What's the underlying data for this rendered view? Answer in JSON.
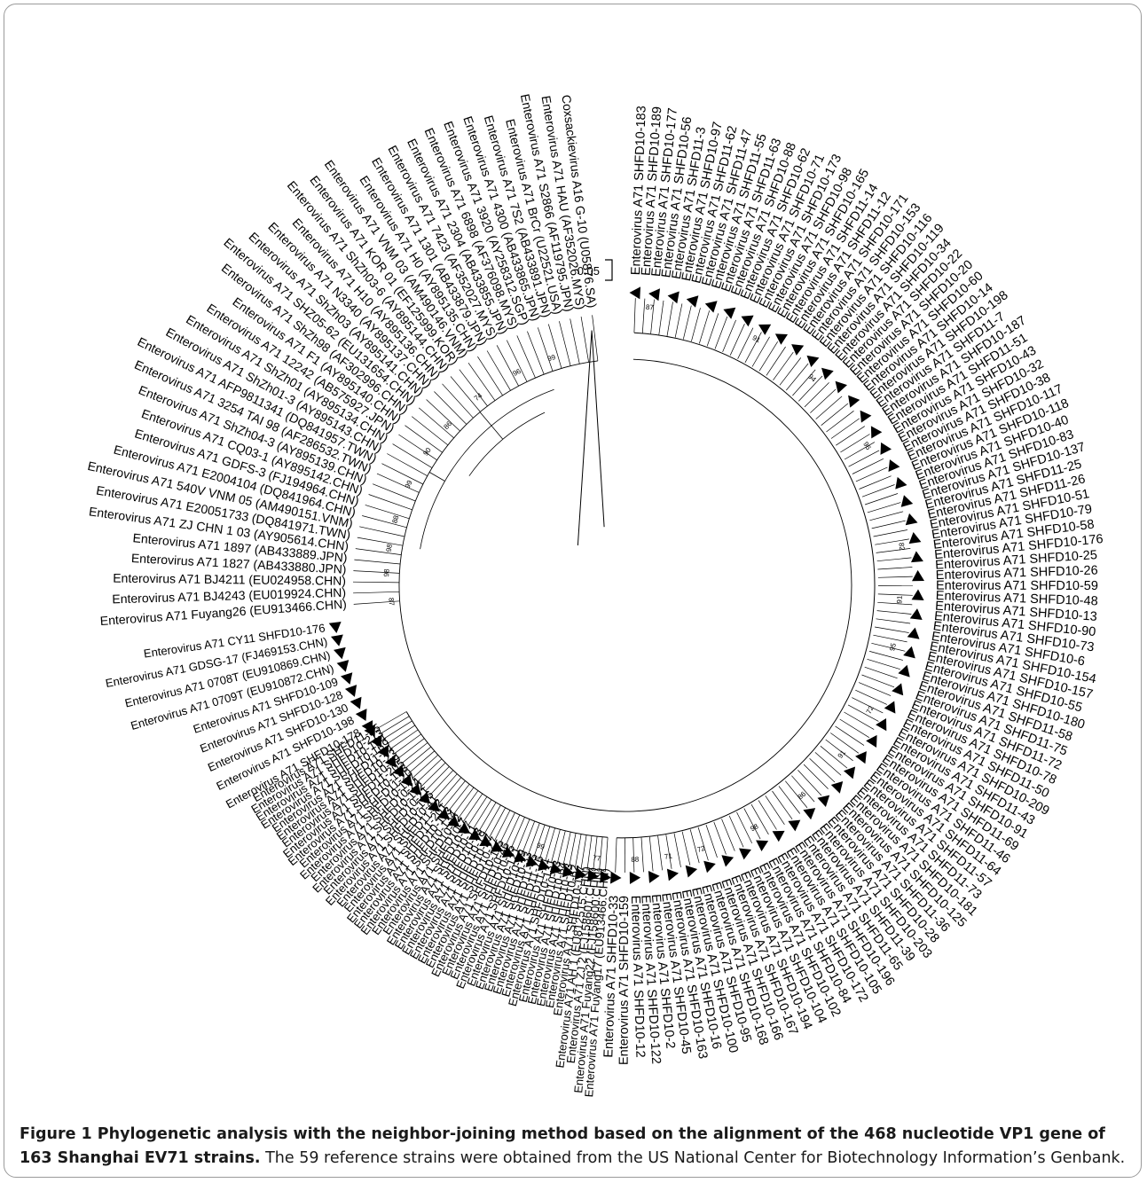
{
  "figure": {
    "caption_title": "Figure 1 Phylogenetic analysis with the neighbor-joining method based on the alignment of the 468 nucleotide VP1 gene of 163 Shanghai EV71 strains.",
    "caption_body": "The 59 reference strains were obtained from the US National Center for Biotechnology Information’s Genbank.",
    "scale_bar_label": "0.05"
  },
  "tree": {
    "left_labels": [
      "Enterovirus A71 Fuyang26 (EU913466.CHN)",
      "Enterovirus A71 BJ4243 (EU019924.CHN)",
      "Enterovirus A71 BJ4211 (EU024958.CHN)",
      "Enterovirus A71 1827 (AB433880.JPN)",
      "Enterovirus A71 1897 (AB433889.JPN)",
      "Enterovirus A71 ZJ CHN 1 03 (AY905614.CHN)",
      "Enterovirus A71 E20051733 (DQ841971.TWN)",
      "Enterovirus A71 540V VNM 05 (AM490151.VNM)",
      "Enterovirus A71 E2004104 (DQ841964.CHN)",
      "Enterovirus A71 GDFS-3 (FJ194964.CHN)",
      "Enterovirus A71 CQ03-1 (AY895142.CHN)",
      "Enterovirus A71 ShZh04-3 (AY895139.CHN)",
      "Enterovirus A71 3254 TAI 98 (AF286532.TWN)",
      "Enterovirus A71 AFP9811341 (DQ841957.TWN)",
      "Enterovirus A71 ShZh01-3 (AY895143.CHN)",
      "Enterovirus A71 ShZh01 (AY895134.CHN)",
      "Enterovirus A71 12242 (AB575927.JPN)",
      "Enterovirus A71 F1 (AY895140.CHN)",
      "Enterovirus A71 ShZh98 (AF302996.CHN)",
      "Enterovirus A71 SHZ05-62 (EU131654.CHN)",
      "Enterovirus A71 ShZh03 (AY895141.CHN)",
      "Enterovirus A71 N3340 (AY895137.CHN)",
      "Enterovirus A71 H10 (AY895136.CHN)",
      "Enterovirus A71 ShZh03-6 (AY895144.CHN)",
      "Enterovirus A71 KOR 01 (EF125999.KOR)",
      "Enterovirus A71 VNM 03 (AM490146.VNM)",
      "Enterovirus A71 H0 (AY895135.CHN)",
      "Enterovirus A71 1301 (AB433879.JPN)",
      "Enterovirus A71 7423 (AF352027.MYS)",
      "Enterovirus A71 2304 (AB433855.JPN)",
      "Enterovirus A71 6898 (AF376098.MYS)",
      "Enterovirus A71 3920 (AY258312.SGP)",
      "Enterovirus A71 4300 (AB433865.JPN)",
      "Enterovirus A71 7S2 (AB433891.JPN)",
      "Enterovirus A71 BrCr (U22521.USA)",
      "Enterovirus A71 S2866 (AF119795.JPN)",
      "Enterovirus A71 HAU (AF352026.MYS)",
      "Coxsackievirus A16 G-10 (U05876.SA)"
    ],
    "right_labels": [
      "Enterovirus A71 SHFD10-183",
      "Enterovirus A71 SHFD10-189",
      "Enterovirus A71 SHFD10-177",
      "Enterovirus A71 SHFD10-56",
      "Enterovirus A71 SHFD11-3",
      "Enterovirus A71 SHFD10-97",
      "Enterovirus A71 SHFD11-62",
      "Enterovirus A71 SHFD11-47",
      "Enterovirus A71 SHFD11-55",
      "Enterovirus A71 SHFD11-63",
      "Enterovirus A71 SHFD10-88",
      "Enterovirus A71 SHFD10-62",
      "Enterovirus A71 SHFD10-71",
      "Enterovirus A71 SHFD10-173",
      "Enterovirus A71 SHFD10-98",
      "Enterovirus A71 SHFD10-165",
      "Enterovirus A71 SHFD11-14",
      "Enterovirus A71 SHFD11-12",
      "Enterovirus A71 SHFD10-171",
      "Enterovirus A71 SHFD10-153",
      "Enterovirus A71 SHFD10-116",
      "Enterovirus A71 SHFD10-119",
      "Enterovirus A71 SHFD10-34",
      "Enterovirus A71 SHFD10-22",
      "Enterovirus A71 SHFD10-20",
      "Enterovirus A71 SHFD10-60",
      "Enterovirus A71 SHFD10-14",
      "Enterovirus A71 SHFD10-198",
      "Enterovirus A71 SHFD11-7",
      "Enterovirus A71 SHFD10-187",
      "Enterovirus A71 SHFD11-51",
      "Enterovirus A71 SHFD10-43",
      "Enterovirus A71 SHFD10-32",
      "Enterovirus A71 SHFD10-38",
      "Enterovirus A71 SHFD10-117",
      "Enterovirus A71 SHFD10-118",
      "Enterovirus A71 SHFD10-40",
      "Enterovirus A71 SHFD10-83",
      "Enterovirus A71 SHFD10-137",
      "Enterovirus A71 SHFD11-25",
      "Enterovirus A71 SHFD11-26",
      "Enterovirus A71 SHFD10-51",
      "Enterovirus A71 SHFD10-79",
      "Enterovirus A71 SHFD10-58",
      "Enterovirus A71 SHFD10-176",
      "Enterovirus A71 SHFD10-25",
      "Enterovirus A71 SHFD10-26",
      "Enterovirus A71 SHFD10-59",
      "Enterovirus A71 SHFD10-48",
      "Enterovirus A71 SHFD10-13",
      "Enterovirus A71 SHFD10-90",
      "Enterovirus A71 SHFD10-73",
      "Enterovirus A71 SHFD10-6",
      "Enterovirus A71 SHFD10-154",
      "Enterovirus A71 SHFD10-157",
      "Enterovirus A71 SHFD10-55",
      "Enterovirus A71 SHFD10-180",
      "Enterovirus A71 SHFD11-58",
      "Enterovirus A71 SHFD11-75",
      "Enterovirus A71 SHFD11-72",
      "Enterovirus A71 SHFD10-78",
      "Enterovirus A71 SHFD11-50",
      "Enterovirus A71 SHFD10-209",
      "Enterovirus A71 SHFD11-43",
      "Enterovirus A71 SHFD10-91",
      "Enterovirus A71 SHFD11-69",
      "Enterovirus A71 SHFD11-46",
      "Enterovirus A71 SHFD11-64",
      "Enterovirus A71 SHFD11-57",
      "Enterovirus A71 SHFD11-73",
      "Enterovirus A71 SHFD10-181",
      "Enterovirus A71 SHFD10-125",
      "Enterovirus A71 SHFD11-36",
      "Enterovirus A71 SHFD10-28",
      "Enterovirus A71 SHFD10-203",
      "Enterovirus A71 SHFD11-39",
      "Enterovirus A71 SHFD11-65",
      "Enterovirus A71 SHFD10-196",
      "Enterovirus A71 SHFD10-105",
      "Enterovirus A71 SHFD10-172",
      "Enterovirus A71 SHFD10-84",
      "Enterovirus A71 SHFD10-102",
      "Enterovirus A71 SHFD10-104",
      "Enterovirus A71 SHFD10-194",
      "Enterovirus A71 SHFD10-167",
      "Enterovirus A71 SHFD10-166",
      "Enterovirus A71 SHFD10-168",
      "Enterovirus A71 SHFD10-95",
      "Enterovirus A71 SHFD10-100",
      "Enterovirus A71 SHFD10-16",
      "Enterovirus A71 SHFD10-163",
      "Enterovirus A71 SHFD10-45",
      "Enterovirus A71 SHFD10-2",
      "Enterovirus A71 SHFD10-122",
      "Enterovirus A71 SHFD10-12",
      "Enterovirus A71 SHFD10-159",
      "Enterovirus A71 SHFD10-33"
    ],
    "bottom_labels": [
      "Enterovirus A71 Fuyang17 (EU913466.CHN)",
      "Enterovirus A71 Fuyang22 (FJ158600.CHN)",
      "Enterovirus A71 ZJ 2 (FJ158601.CHN)",
      "Enterovirus A71 AH 1 (EU812515.CHN)",
      "Enterovirus A71 SHFD10-127",
      "Enterovirus A71 SHFD10-62",
      "Enterovirus A71 SHFD10-63",
      "Enterovirus A71 SHFD10-64",
      "Enterovirus A71 SHFD10-93",
      "Enterovirus A71 SHFD10-131",
      "Enterovirus A71 SHFD11-61",
      "Enterovirus A71 SHFD11-76",
      "Enterovirus A71 SHFD11-45",
      "Enterovirus A71 SHFD10-33",
      "Enterovirus A71 SHFD10-29",
      "Enterovirus A71 SHFD10-121",
      "Enterovirus A71 SHFD10-75",
      "Enterovirus A71 SHFD10-46",
      "Enterovirus A71 SHFD10-115",
      "Enterovirus A71 SHFD10-27",
      "Enterovirus A71 SHFD10-37",
      "Enterovirus A71 SHFD10-19",
      "Enterovirus A71 SHFD10-18",
      "Enterovirus A71 SHFD10-11",
      "Enterovirus A71 SHFD10-67",
      "Enterovirus A71 SHFD10-7",
      "Enterovirus A71 SHFD10-92",
      "Enterovirus A71 SHFD10-134",
      "Enterovirus A71 SHFD10-113",
      "Enterovirus A71 SHFD11-201",
      "Enterovirus A71 SHFD11-42",
      "Enterovirus A71 SHFD10-41",
      "Enterovirus A71 SHFD10-166",
      "Enterovirus A71 SHFD10-21",
      "Enterovirus A71 SHFD10-132",
      "Enterovirus A71 SHFD10-24",
      "Enterovirus A71 SHFD10-167",
      "Enterovirus A71 SHFD11-20",
      "Enterovirus A71 SHFD10-158",
      "Enterovirus A71 SHFD11-205",
      "Enterovirus A71 SHFD10-49",
      "Enterovirus A71 SHFD10-23",
      "Enterovirus A71 SHFD11-24",
      "Enterovirus A71 SHFD10-169",
      "Enterovirus A71 SHFD10-184",
      "Enterovirus A71 SHFD10-213",
      "Enterovirus A71 SHFD11-35"
    ],
    "inner_labels": [
      "Enterovirus A71 SHFD10-178",
      "Enterovirus A71 SHFD10-198",
      "Enterovirus A71 SHFD10-130",
      "Enterovirus A71 SHFD10-128",
      "Enterovirus A71 SHFD10-109",
      "Enterovirus A71 0709T (EU910872.CHN)",
      "Enterovirus A71 0708T (EU910869.CHN)",
      "Enterovirus A71 GDSG-17 (FJ469153.CHN)",
      "Enterovirus A71 CY11 SHFD10-176"
    ],
    "outer_cluster_labels": [
      "Enterovirus A71 0709T (EU910872.CHN)",
      "Enterovirus A71 0708T (EU910869.CHN)",
      "Enterovirus A71 GDSG-17 (FJ469153.CHN)",
      "Enterovirus A71 CY11 SHFD10-178"
    ],
    "bootstrap_values": [
      "87",
      "91",
      "94",
      "96",
      "82",
      "91",
      "95",
      "72",
      "91",
      "86",
      "98",
      "72",
      "71",
      "88",
      "77",
      "99",
      "87",
      "98",
      "98",
      "88",
      "99",
      "90",
      "86",
      "74",
      "96",
      "99"
    ]
  }
}
